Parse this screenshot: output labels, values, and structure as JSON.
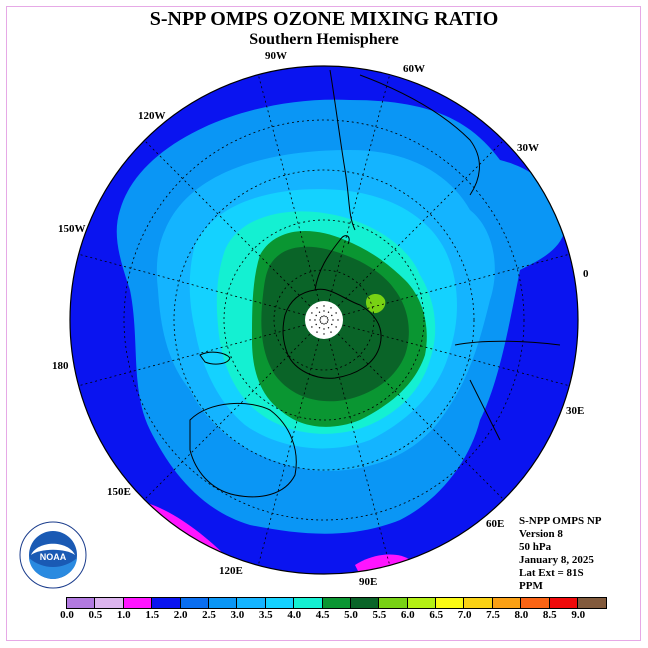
{
  "title": "S-NPP OMPS OZONE MIXING RATIO",
  "subtitle": "Southern Hemisphere",
  "longitude_labels": [
    "90W",
    "60W",
    "30W",
    "0",
    "30E",
    "60E",
    "90E",
    "120E",
    "150E",
    "180",
    "150W",
    "120W"
  ],
  "info": {
    "instrument": "S-NPP OMPS NP",
    "version": "Version 8",
    "pressure": "50 hPa",
    "date": "January 8, 2025",
    "lat_ext": "Lat Ext = 81S",
    "units": "PPM"
  },
  "logo_text": "NOAA",
  "colorbar": {
    "labels": [
      "0.0",
      "0.5",
      "1.0",
      "1.5",
      "2.0",
      "2.5",
      "3.0",
      "3.5",
      "4.0",
      "4.5",
      "5.0",
      "5.5",
      "6.0",
      "6.5",
      "7.0",
      "7.5",
      "8.0",
      "8.5",
      "9.0"
    ],
    "colors": [
      "#b27ae0",
      "#dcb4ee",
      "#ff14ff",
      "#0a14f0",
      "#0a6ef0",
      "#0a96f5",
      "#14b4ff",
      "#14d2ff",
      "#14f0d2",
      "#0a9632",
      "#0a6428",
      "#78d214",
      "#b4f014",
      "#fafa14",
      "#fad214",
      "#faa014",
      "#fa6414",
      "#f00a0a",
      "#825a3c"
    ]
  },
  "colors": {
    "frame": "#e6a9e6",
    "background_ocean": "#0a14f0"
  }
}
